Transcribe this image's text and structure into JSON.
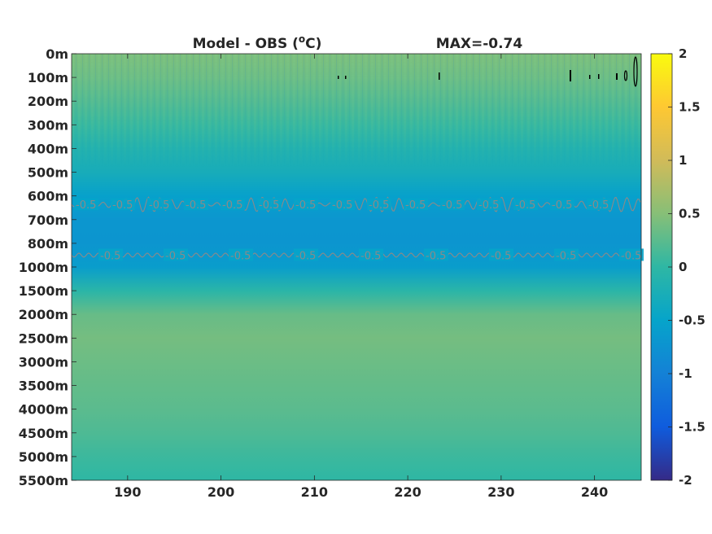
{
  "chart_data": {
    "type": "heatmap",
    "title": "Model - OBS (°C)",
    "title_parts": {
      "prefix": "Model - OBS (",
      "superscript": "o",
      "suffix": "C)"
    },
    "annotation": "MAX=-0.74",
    "xlabel": "",
    "ylabel": "",
    "xlim": [
      184,
      245
    ],
    "x_ticks": [
      190,
      200,
      210,
      220,
      230,
      240
    ],
    "y_tick_labels": [
      "0m",
      "100m",
      "200m",
      "300m",
      "400m",
      "500m",
      "600m",
      "700m",
      "800m",
      "1000m",
      "1500m",
      "2000m",
      "2500m",
      "3000m",
      "3500m",
      "4000m",
      "4500m",
      "5000m",
      "5500m"
    ],
    "depth_profile": [
      {
        "depth": "0m",
        "value": 0.45
      },
      {
        "depth": "100m",
        "value": 0.35
      },
      {
        "depth": "200m",
        "value": 0.2
      },
      {
        "depth": "300m",
        "value": 0.05
      },
      {
        "depth": "400m",
        "value": -0.15
      },
      {
        "depth": "500m",
        "value": -0.28
      },
      {
        "depth": "600m",
        "value": -0.55
      },
      {
        "depth": "700m",
        "value": -0.7
      },
      {
        "depth": "800m",
        "value": -0.72
      },
      {
        "depth": "1000m",
        "value": -0.6
      },
      {
        "depth": "1500m",
        "value": -0.05
      },
      {
        "depth": "2000m",
        "value": 0.32
      },
      {
        "depth": "2500m",
        "value": 0.4
      },
      {
        "depth": "3000m",
        "value": 0.35
      },
      {
        "depth": "3500m",
        "value": 0.3
      },
      {
        "depth": "4000m",
        "value": 0.25
      },
      {
        "depth": "4500m",
        "value": 0.18
      },
      {
        "depth": "5000m",
        "value": 0.08
      },
      {
        "depth": "5500m",
        "value": 0.0
      }
    ],
    "contours": [
      {
        "level": -0.5,
        "label": "-0.5",
        "depth_between": [
          "600m",
          "700m"
        ]
      },
      {
        "level": -0.5,
        "label": "-0.5",
        "depth_between": [
          "800m",
          "1000m"
        ]
      }
    ],
    "contour_color": "#8a8a8a",
    "colorbar": {
      "range": [
        -2,
        2
      ],
      "ticks": [
        "2",
        "1.5",
        "1",
        "0.5",
        "0",
        "-0.5",
        "-1",
        "-1.5",
        "-2"
      ],
      "colormap": "parula",
      "colors": [
        "#352a87",
        "#0f5cdd",
        "#1481d6",
        "#06a4ca",
        "#2eb7a4",
        "#87bf77",
        "#d1bb59",
        "#fec832",
        "#f9fb0e"
      ]
    },
    "grid": false,
    "legend": "colorbar-right"
  }
}
